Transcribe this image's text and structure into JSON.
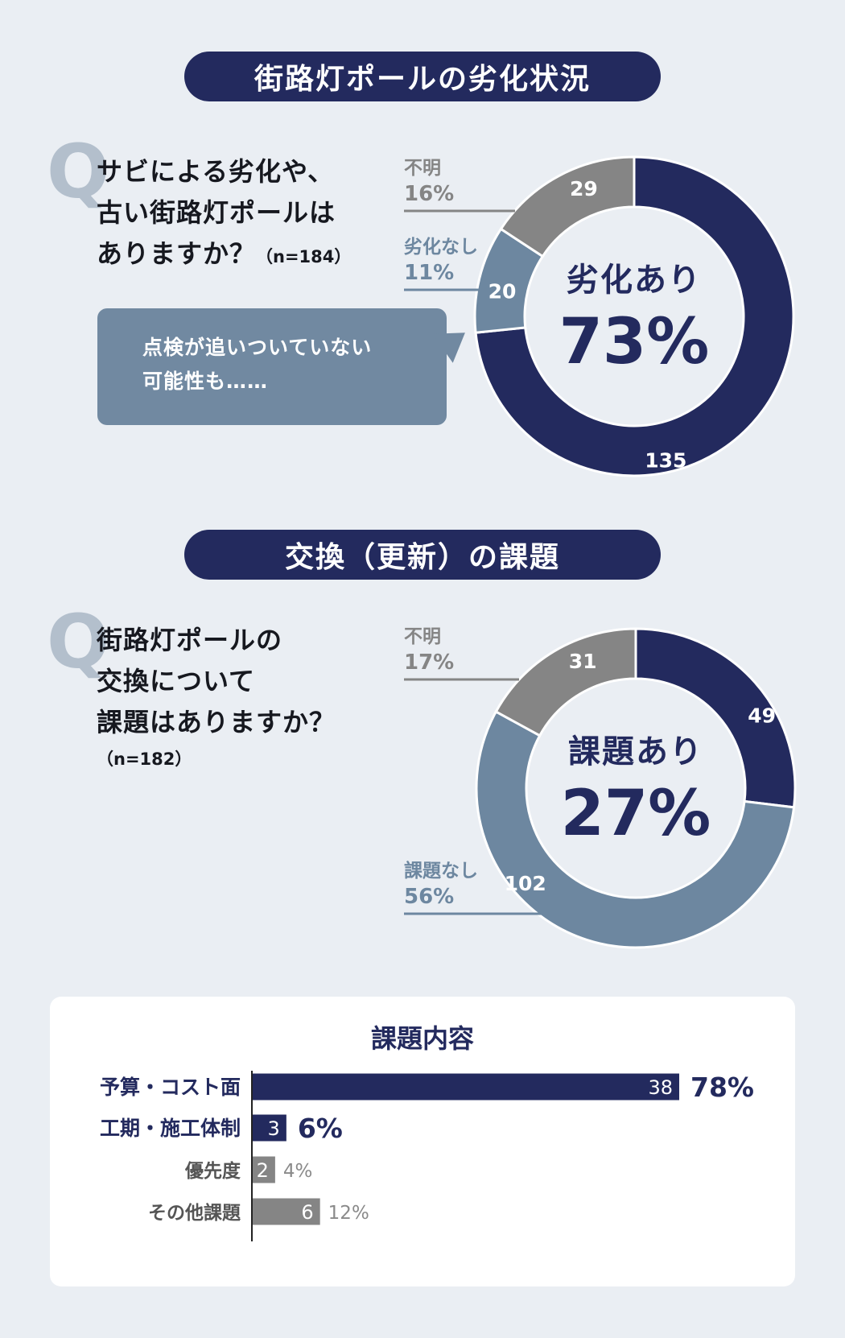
{
  "sections": [
    {
      "title": "街路灯ポールの劣化状況",
      "question_mark": "Q",
      "question_lines": [
        "サビによる劣化や、",
        "古い街路灯ポールは",
        "ありますか？"
      ],
      "n_label": "（n=184）",
      "bubble_lines": [
        "点検が追いついていない",
        "可能性も……"
      ]
    },
    {
      "title": "交換（更新）の課題",
      "question_mark": "Q",
      "question_lines": [
        "街路灯ポールの",
        "交換について",
        "課題はありますか？"
      ],
      "n_label": "（n=182）"
    }
  ],
  "chart_data": [
    {
      "type": "pie",
      "variant": "donut",
      "center_label": "劣化あり",
      "center_value": "73%",
      "slices": [
        {
          "label": "劣化あり",
          "value": 135,
          "percent": "73%",
          "color": "#232a5e"
        },
        {
          "label": "劣化なし",
          "value": 20,
          "percent": "11%",
          "color": "#6d87a0"
        },
        {
          "label": "不明",
          "value": 29,
          "percent": "16%",
          "color": "#858585"
        }
      ]
    },
    {
      "type": "pie",
      "variant": "donut",
      "center_label": "課題あり",
      "center_value": "27%",
      "slices": [
        {
          "label": "課題あり",
          "value": 49,
          "percent": "27%",
          "color": "#232a5e"
        },
        {
          "label": "課題なし",
          "value": 102,
          "percent": "56%",
          "color": "#6d87a0"
        },
        {
          "label": "不明",
          "value": 31,
          "percent": "17%",
          "color": "#858585"
        }
      ]
    },
    {
      "type": "bar",
      "orientation": "horizontal",
      "title": "課題内容",
      "categories": [
        "予算・コスト面",
        "工期・施工体制",
        "優先度",
        "その他課題"
      ],
      "values": [
        38,
        3,
        2,
        6
      ],
      "percents": [
        "78%",
        "6%",
        "4%",
        "12%"
      ],
      "highlight": [
        true,
        true,
        false,
        false
      ],
      "max": 38
    }
  ],
  "colors": {
    "navy": "#232a5e",
    "steel": "#6d87a0",
    "gray": "#858585",
    "background": "#eaeef3"
  }
}
